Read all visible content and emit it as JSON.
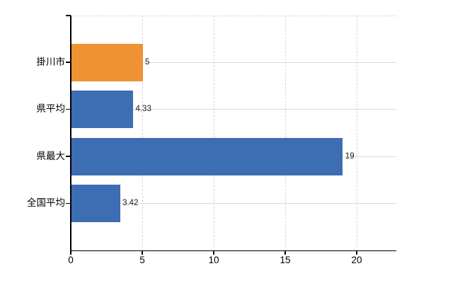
{
  "chart_data": {
    "type": "bar",
    "orientation": "horizontal",
    "title": "",
    "xlabel": "",
    "ylabel": "",
    "categories": [
      "掛川市",
      "県平均",
      "県最大",
      "全国平均"
    ],
    "values": [
      5,
      4.33,
      19,
      3.42
    ],
    "value_labels": [
      "5",
      "4.33",
      "19",
      "3.42"
    ],
    "bar_colors": [
      "#ee9233",
      "#3d6db3",
      "#3d6db3",
      "#3d6db3"
    ],
    "highlighted_category": "掛川市",
    "x_tick_labels": [
      "0",
      "5",
      "10",
      "15",
      "20"
    ],
    "x_tick_values": [
      0,
      5,
      10,
      15,
      20
    ],
    "xlim": [
      0,
      22.8
    ],
    "grid": true,
    "legend_position": "none"
  },
  "colors": {
    "bar_blue": "#3d6db3",
    "bar_orange": "#ee9233",
    "axis": "#000000",
    "gridline": "#d8d8d8",
    "background": "#ffffff",
    "label_text": "#1a1a1a"
  }
}
